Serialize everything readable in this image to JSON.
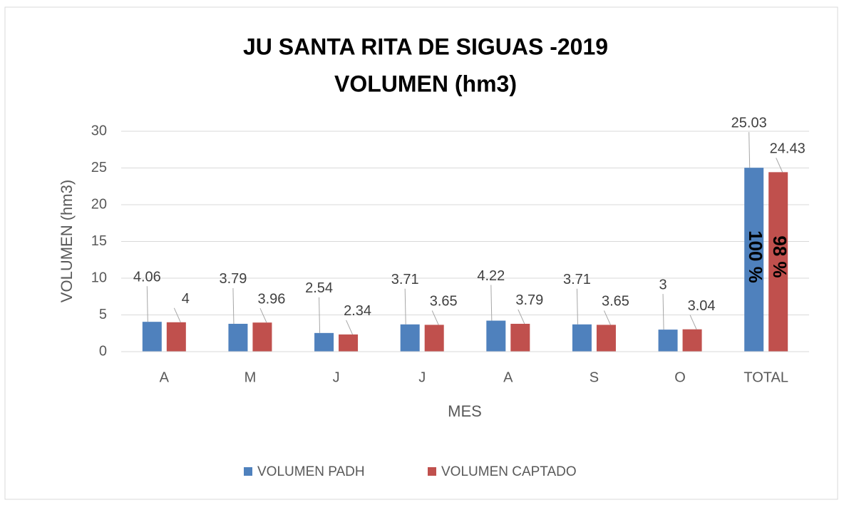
{
  "chart_data": {
    "type": "bar",
    "title": "JU SANTA RITA DE SIGUAS -2019",
    "subtitle": "VOLUMEN (hm3)",
    "x_label": "MES",
    "y_label": "VOLUMEN (hm3)",
    "categories": [
      "A",
      "M",
      "J",
      "J",
      "A",
      "S",
      "O",
      "TOTAL"
    ],
    "series": [
      {
        "name": "VOLUMEN PADH",
        "color": "#4f81bd",
        "values": [
          4.06,
          3.79,
          2.54,
          3.71,
          4.22,
          3.71,
          3,
          25.03
        ]
      },
      {
        "name": "VOLUMEN CAPTADO",
        "color": "#c0504d",
        "values": [
          4,
          3.96,
          2.34,
          3.65,
          3.79,
          3.65,
          3.04,
          24.43
        ]
      }
    ],
    "annotations": [
      "100 %",
      "98 %"
    ],
    "ylim": [
      0,
      30
    ],
    "yticks": [
      0,
      5,
      10,
      15,
      20,
      25,
      30
    ],
    "grid": true,
    "legend": "bottom"
  }
}
